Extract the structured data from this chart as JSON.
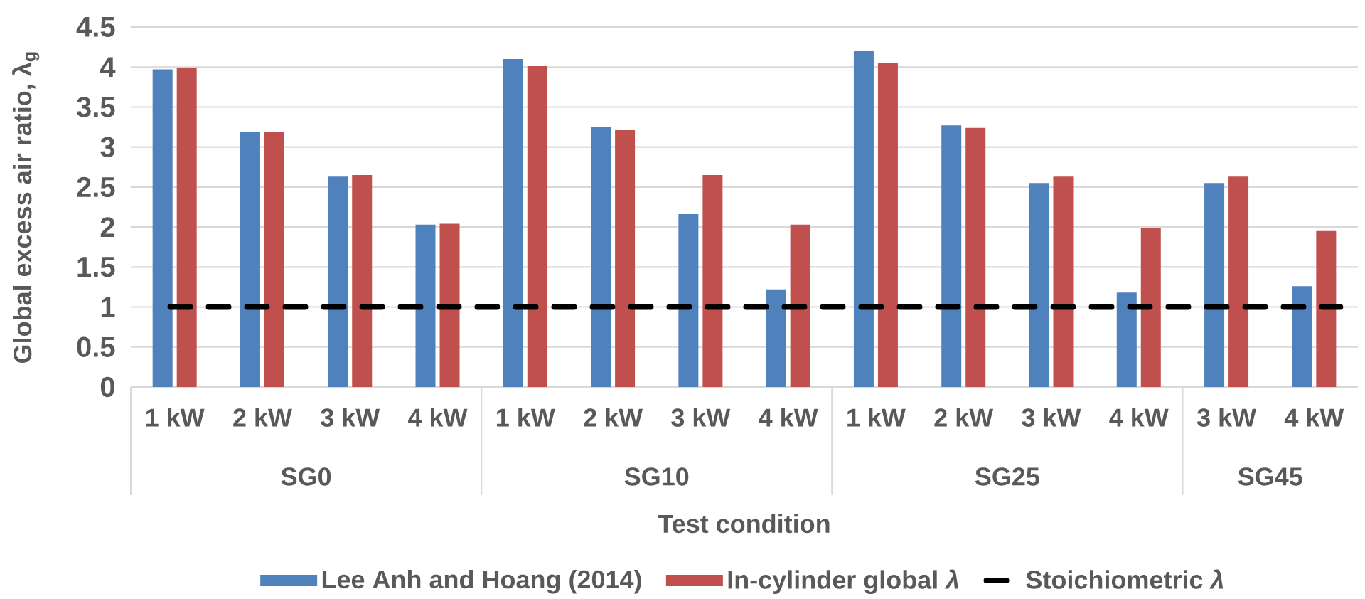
{
  "chart_data": {
    "type": "bar",
    "xlabel": "Test condition",
    "ylabel": "Global excess air ratio, λ$_{g}$",
    "categories": [
      "1 kW",
      "2 kW",
      "3 kW",
      "4 kW",
      "1 kW",
      "2 kW",
      "3 kW",
      "4 kW",
      "1 kW",
      "2 kW",
      "3 kW",
      "4 kW",
      "3 kW",
      "4 kW"
    ],
    "series": [
      {
        "name": "Lee Anh and Hoang (2014)",
        "color": "#4f81bd",
        "values": [
          3.97,
          3.19,
          2.63,
          2.03,
          4.1,
          3.25,
          2.16,
          1.22,
          4.2,
          3.27,
          2.55,
          1.18,
          2.55,
          1.26
        ]
      },
      {
        "name": "In-cylinder global *λ*",
        "color": "#c0504d",
        "values": [
          3.99,
          3.19,
          2.65,
          2.04,
          4.01,
          3.21,
          2.65,
          2.03,
          4.05,
          3.24,
          2.63,
          1.99,
          2.63,
          1.95
        ]
      }
    ],
    "annotations": [
      "SG0",
      "SG10",
      "SG25",
      "SG45"
    ],
    "ref_lines": [
      {
        "axis": "y",
        "value": 1,
        "label": "Stoichiometric *λ*",
        "color": "#000000",
        "line_style": "dashed"
      }
    ],
    "ylim": [
      0,
      4.5
    ],
    "yticks": [
      0,
      0.5,
      1,
      1.5,
      2,
      2.5,
      3,
      3.5,
      4,
      4.5
    ],
    "grid": "y",
    "legend": "bottom"
  }
}
